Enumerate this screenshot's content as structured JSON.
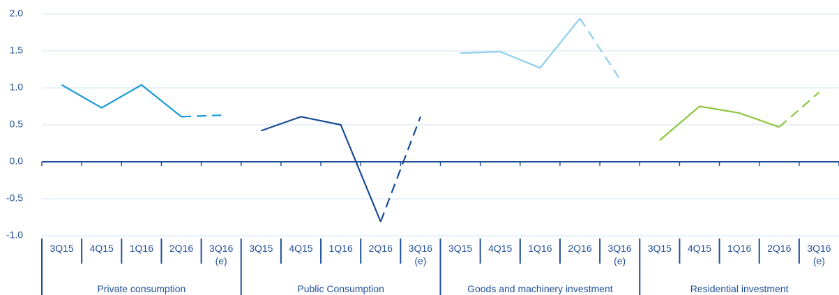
{
  "chart_data": {
    "type": "line",
    "ylim": [
      -1.0,
      2.0
    ],
    "yticks": [
      {
        "value": 2,
        "label": "2.0"
      },
      1.5,
      {
        "value": 1,
        "label": "1.0"
      },
      0.5,
      {
        "value": 0,
        "label": "0.0"
      },
      -0.5,
      {
        "value": -1,
        "label": "-1.0"
      }
    ],
    "grid": true,
    "series": [
      {
        "name": "Private consumption",
        "color": "#1a9ad6",
        "categories": [
          "3Q15",
          "4Q15",
          "1Q16",
          "2Q16",
          "3Q16\n(e)"
        ],
        "values": [
          1.04,
          0.73,
          1.04,
          0.61,
          0.63
        ]
      },
      {
        "name": "Public Consumption",
        "color": "#174a94",
        "categories": [
          "3Q15",
          "4Q15",
          "1Q16",
          "2Q16",
          "3Q16\n(e)"
        ],
        "values": [
          0.42,
          0.61,
          0.5,
          -0.81,
          0.61
        ]
      },
      {
        "name": "Goods and machinery investment",
        "color": "#8fcdee",
        "categories": [
          "3Q15",
          "4Q15",
          "1Q16",
          "2Q16",
          "3Q16\n(e)"
        ],
        "values": [
          1.47,
          1.49,
          1.27,
          1.94,
          1.12
        ]
      },
      {
        "name": "Residential investment",
        "color": "#8dc63f",
        "categories": [
          "3Q15",
          "4Q15",
          "1Q16",
          "2Q16",
          "3Q16\n(e)"
        ],
        "values": [
          0.29,
          0.75,
          0.66,
          0.47,
          0.94
        ]
      }
    ]
  }
}
